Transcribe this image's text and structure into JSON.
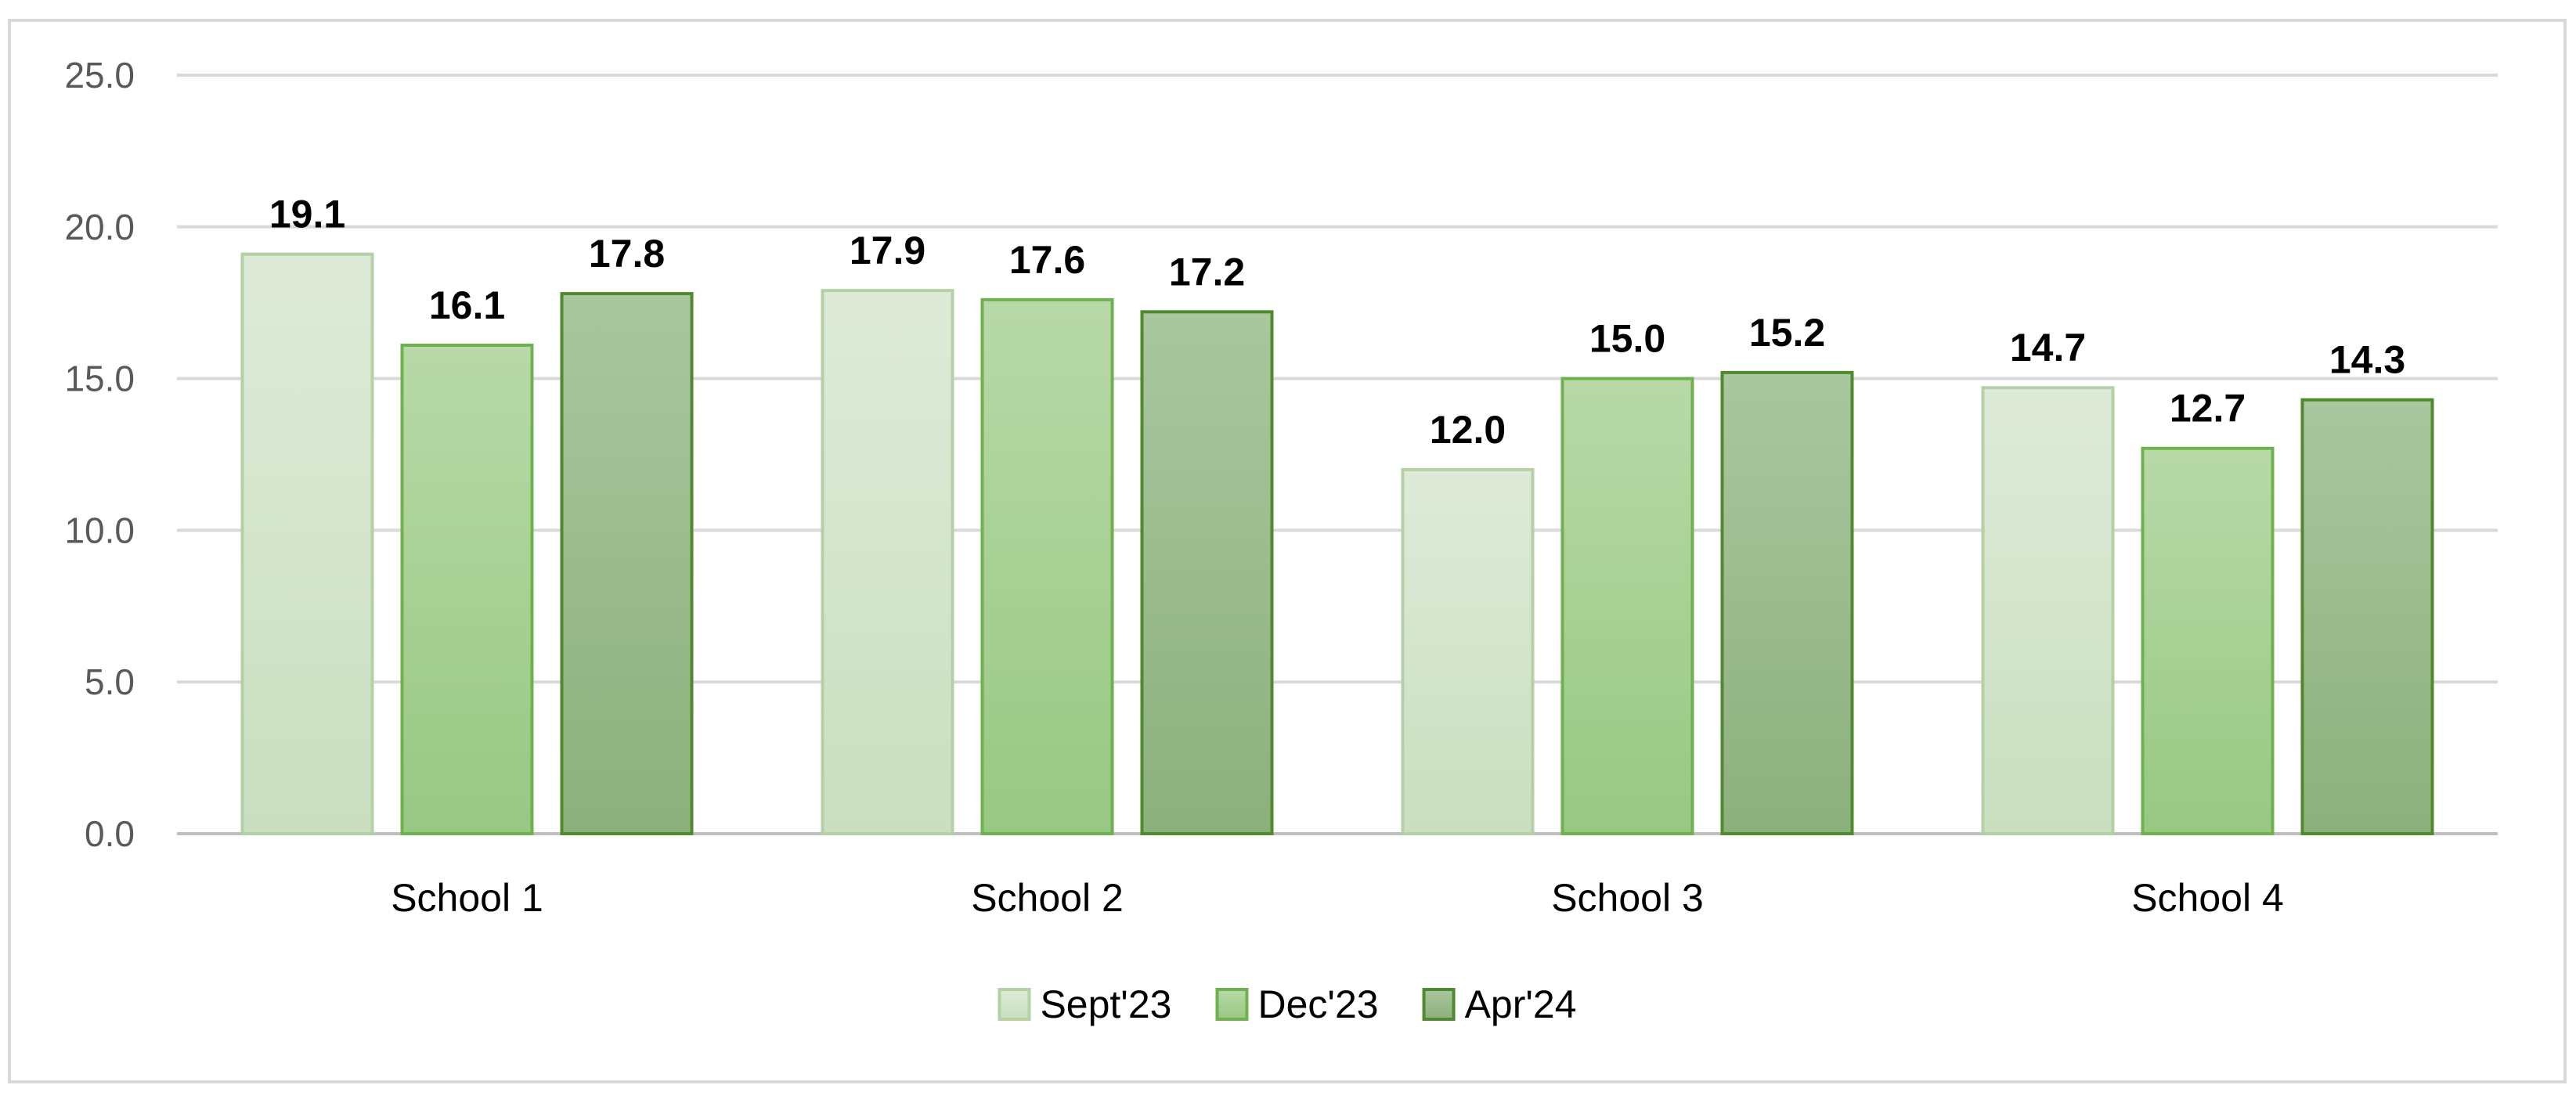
{
  "chart_data": {
    "type": "bar",
    "categories": [
      "School 1",
      "School 2",
      "School 3",
      "School 4"
    ],
    "series": [
      {
        "name": "Sept'23",
        "values": [
          19.1,
          17.9,
          12.0,
          14.7
        ],
        "fill_top": "#deead8",
        "fill_bottom": "#c9dfc0",
        "stroke": "#b3d1a5"
      },
      {
        "name": "Dec'23",
        "values": [
          16.1,
          17.6,
          15.0,
          12.7
        ],
        "fill_top": "#b8d9a8",
        "fill_bottom": "#97c882",
        "stroke": "#6fb14f"
      },
      {
        "name": "Apr'24",
        "values": [
          17.8,
          17.2,
          15.2,
          14.3
        ],
        "fill_top": "#aac69f",
        "fill_bottom": "#8cb07c",
        "stroke": "#4f8a2f"
      }
    ],
    "y_ticks": [
      "0.0",
      "5.0",
      "10.0",
      "15.0",
      "20.0",
      "25.0"
    ],
    "ylim": [
      0,
      25
    ],
    "grid": true,
    "legend_position": "bottom",
    "title": "",
    "xlabel": "",
    "ylabel": ""
  }
}
